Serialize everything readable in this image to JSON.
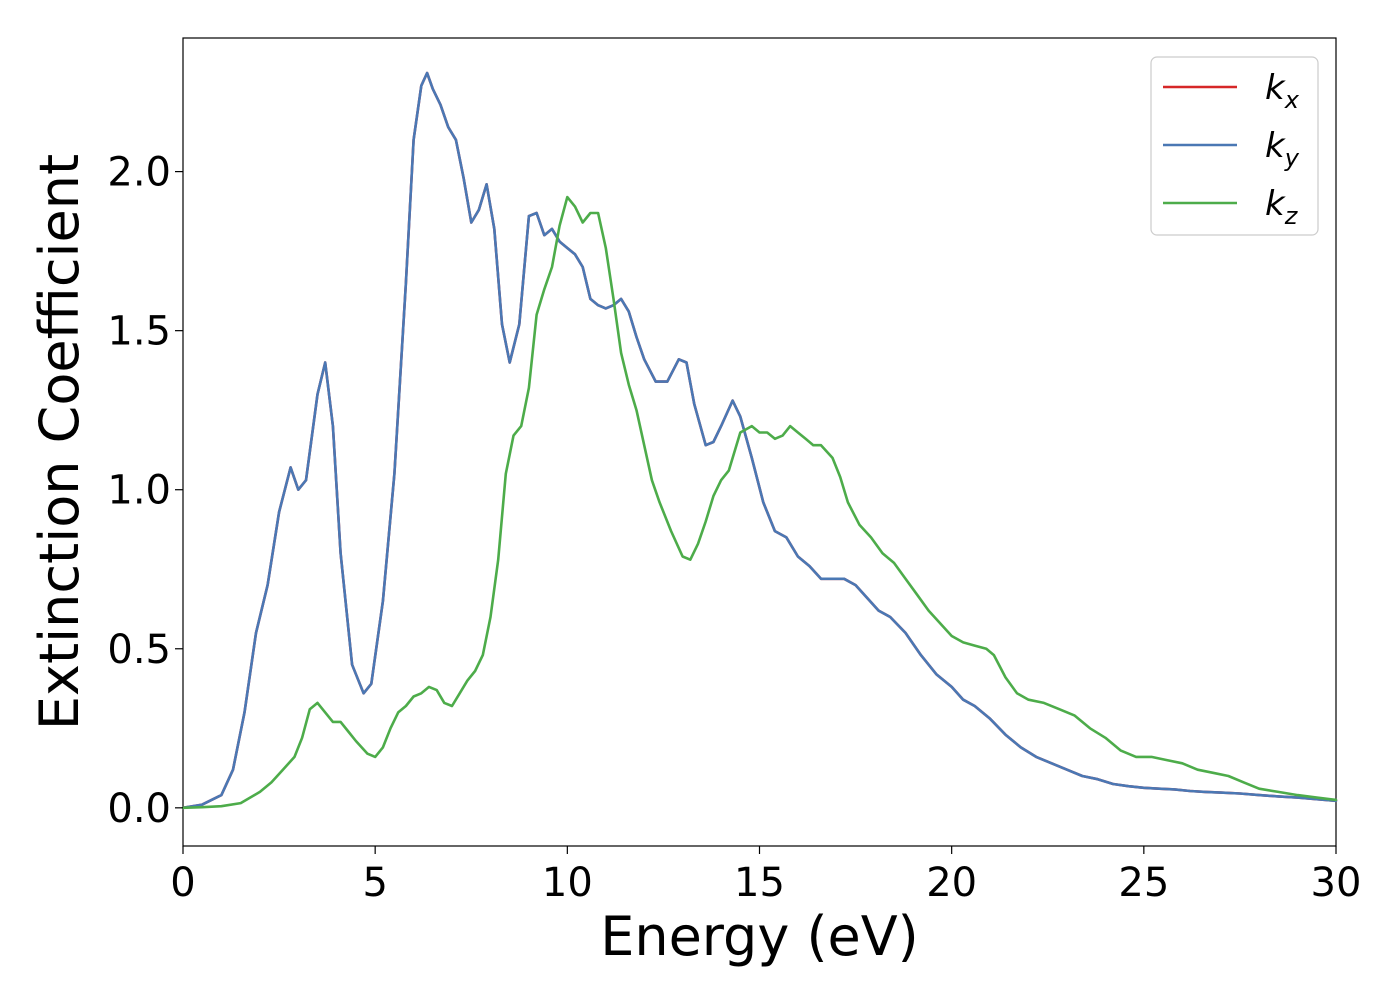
{
  "chart_data": {
    "type": "line",
    "xlabel": "Energy (eV)",
    "ylabel": "Extinction Coefficient",
    "xlim": [
      0,
      30
    ],
    "ylim": [
      -0.12,
      2.42
    ],
    "xticks": [
      0,
      5,
      10,
      15,
      20,
      25,
      30
    ],
    "yticks": [
      0.0,
      0.5,
      1.0,
      1.5,
      2.0
    ],
    "xtick_labels": [
      "0",
      "5",
      "10",
      "15",
      "20",
      "25",
      "30"
    ],
    "ytick_labels": [
      "0.0",
      "0.5",
      "1.0",
      "1.5",
      "2.0"
    ],
    "grid": false,
    "legend_position": "top-right",
    "series": [
      {
        "name": "k",
        "subscript": "x",
        "color": "#d62728",
        "x": [
          0,
          0.5,
          1.0,
          1.3,
          1.6,
          1.9,
          2.2,
          2.5,
          2.8,
          3.0,
          3.2,
          3.5,
          3.7,
          3.9,
          4.1,
          4.4,
          4.7,
          4.9,
          5.2,
          5.5,
          5.8,
          6.0,
          6.2,
          6.35,
          6.5,
          6.7,
          6.9,
          7.1,
          7.3,
          7.5,
          7.7,
          7.9,
          8.1,
          8.3,
          8.5,
          8.75,
          9.0,
          9.2,
          9.4,
          9.6,
          9.8,
          10.0,
          10.2,
          10.4,
          10.6,
          10.8,
          11.0,
          11.2,
          11.4,
          11.6,
          11.8,
          12.0,
          12.3,
          12.6,
          12.9,
          13.1,
          13.3,
          13.6,
          13.8,
          14.0,
          14.3,
          14.5,
          14.8,
          15.1,
          15.4,
          15.7,
          16.0,
          16.3,
          16.6,
          16.9,
          17.2,
          17.5,
          17.8,
          18.1,
          18.4,
          18.8,
          19.2,
          19.6,
          20.0,
          20.3,
          20.6,
          21.0,
          21.4,
          21.8,
          22.2,
          22.6,
          23.0,
          23.4,
          23.8,
          24.2,
          24.6,
          25.0,
          25.4,
          25.8,
          26.2,
          26.6,
          27.0,
          27.5,
          28.0,
          28.5,
          29.0,
          29.5,
          30.0
        ],
        "values": [
          0,
          0.01,
          0.04,
          0.12,
          0.3,
          0.55,
          0.7,
          0.93,
          1.07,
          1.0,
          1.03,
          1.3,
          1.4,
          1.2,
          0.8,
          0.45,
          0.36,
          0.39,
          0.65,
          1.05,
          1.65,
          2.1,
          2.27,
          2.31,
          2.26,
          2.21,
          2.14,
          2.1,
          1.98,
          1.84,
          1.88,
          1.96,
          1.82,
          1.52,
          1.4,
          1.52,
          1.86,
          1.87,
          1.8,
          1.82,
          1.78,
          1.76,
          1.74,
          1.7,
          1.6,
          1.58,
          1.57,
          1.58,
          1.6,
          1.56,
          1.48,
          1.41,
          1.34,
          1.34,
          1.41,
          1.4,
          1.27,
          1.14,
          1.15,
          1.2,
          1.28,
          1.23,
          1.1,
          0.96,
          0.87,
          0.85,
          0.79,
          0.76,
          0.72,
          0.72,
          0.72,
          0.7,
          0.66,
          0.62,
          0.6,
          0.55,
          0.48,
          0.42,
          0.38,
          0.34,
          0.32,
          0.28,
          0.23,
          0.19,
          0.16,
          0.14,
          0.12,
          0.1,
          0.09,
          0.075,
          0.068,
          0.063,
          0.06,
          0.058,
          0.053,
          0.05,
          0.048,
          0.045,
          0.04,
          0.036,
          0.032,
          0.027,
          0.022
        ]
      },
      {
        "name": "k",
        "subscript": "y",
        "color": "#4a78b4",
        "x": [
          0,
          0.5,
          1.0,
          1.3,
          1.6,
          1.9,
          2.2,
          2.5,
          2.8,
          3.0,
          3.2,
          3.5,
          3.7,
          3.9,
          4.1,
          4.4,
          4.7,
          4.9,
          5.2,
          5.5,
          5.8,
          6.0,
          6.2,
          6.35,
          6.5,
          6.7,
          6.9,
          7.1,
          7.3,
          7.5,
          7.7,
          7.9,
          8.1,
          8.3,
          8.5,
          8.75,
          9.0,
          9.2,
          9.4,
          9.6,
          9.8,
          10.0,
          10.2,
          10.4,
          10.6,
          10.8,
          11.0,
          11.2,
          11.4,
          11.6,
          11.8,
          12.0,
          12.3,
          12.6,
          12.9,
          13.1,
          13.3,
          13.6,
          13.8,
          14.0,
          14.3,
          14.5,
          14.8,
          15.1,
          15.4,
          15.7,
          16.0,
          16.3,
          16.6,
          16.9,
          17.2,
          17.5,
          17.8,
          18.1,
          18.4,
          18.8,
          19.2,
          19.6,
          20.0,
          20.3,
          20.6,
          21.0,
          21.4,
          21.8,
          22.2,
          22.6,
          23.0,
          23.4,
          23.8,
          24.2,
          24.6,
          25.0,
          25.4,
          25.8,
          26.2,
          26.6,
          27.0,
          27.5,
          28.0,
          28.5,
          29.0,
          29.5,
          30.0
        ],
        "values": [
          0,
          0.01,
          0.04,
          0.12,
          0.3,
          0.55,
          0.7,
          0.93,
          1.07,
          1.0,
          1.03,
          1.3,
          1.4,
          1.2,
          0.8,
          0.45,
          0.36,
          0.39,
          0.65,
          1.05,
          1.65,
          2.1,
          2.27,
          2.31,
          2.26,
          2.21,
          2.14,
          2.1,
          1.98,
          1.84,
          1.88,
          1.96,
          1.82,
          1.52,
          1.4,
          1.52,
          1.86,
          1.87,
          1.8,
          1.82,
          1.78,
          1.76,
          1.74,
          1.7,
          1.6,
          1.58,
          1.57,
          1.58,
          1.6,
          1.56,
          1.48,
          1.41,
          1.34,
          1.34,
          1.41,
          1.4,
          1.27,
          1.14,
          1.15,
          1.2,
          1.28,
          1.23,
          1.1,
          0.96,
          0.87,
          0.85,
          0.79,
          0.76,
          0.72,
          0.72,
          0.72,
          0.7,
          0.66,
          0.62,
          0.6,
          0.55,
          0.48,
          0.42,
          0.38,
          0.34,
          0.32,
          0.28,
          0.23,
          0.19,
          0.16,
          0.14,
          0.12,
          0.1,
          0.09,
          0.075,
          0.068,
          0.063,
          0.06,
          0.058,
          0.053,
          0.05,
          0.048,
          0.045,
          0.04,
          0.036,
          0.032,
          0.027,
          0.022
        ]
      },
      {
        "name": "k",
        "subscript": "z",
        "color": "#4dac4a",
        "x": [
          0,
          0.5,
          1.0,
          1.5,
          2.0,
          2.3,
          2.6,
          2.9,
          3.1,
          3.3,
          3.5,
          3.7,
          3.9,
          4.1,
          4.3,
          4.5,
          4.8,
          5.0,
          5.2,
          5.4,
          5.6,
          5.8,
          6.0,
          6.2,
          6.4,
          6.6,
          6.8,
          7.0,
          7.2,
          7.4,
          7.6,
          7.8,
          8.0,
          8.2,
          8.4,
          8.6,
          8.8,
          9.0,
          9.2,
          9.4,
          9.6,
          9.8,
          10.0,
          10.2,
          10.4,
          10.6,
          10.8,
          11.0,
          11.2,
          11.4,
          11.6,
          11.8,
          12.0,
          12.2,
          12.4,
          12.7,
          13.0,
          13.2,
          13.4,
          13.6,
          13.8,
          14.0,
          14.2,
          14.5,
          14.8,
          15.0,
          15.2,
          15.4,
          15.6,
          15.8,
          16.0,
          16.2,
          16.4,
          16.6,
          16.9,
          17.1,
          17.3,
          17.6,
          17.9,
          18.2,
          18.5,
          18.8,
          19.1,
          19.4,
          19.7,
          20.0,
          20.3,
          20.6,
          20.9,
          21.1,
          21.4,
          21.7,
          22.0,
          22.4,
          22.8,
          23.2,
          23.6,
          24.0,
          24.4,
          24.8,
          25.2,
          25.6,
          26.0,
          26.4,
          26.8,
          27.2,
          27.6,
          28.0,
          28.5,
          29.0,
          29.5,
          30.0
        ],
        "values": [
          0,
          0.002,
          0.005,
          0.015,
          0.05,
          0.08,
          0.12,
          0.16,
          0.22,
          0.31,
          0.33,
          0.3,
          0.27,
          0.27,
          0.24,
          0.21,
          0.17,
          0.16,
          0.19,
          0.25,
          0.3,
          0.32,
          0.35,
          0.36,
          0.38,
          0.37,
          0.33,
          0.32,
          0.36,
          0.4,
          0.43,
          0.48,
          0.6,
          0.78,
          1.05,
          1.17,
          1.2,
          1.32,
          1.55,
          1.63,
          1.7,
          1.83,
          1.92,
          1.89,
          1.84,
          1.87,
          1.87,
          1.76,
          1.6,
          1.43,
          1.33,
          1.25,
          1.14,
          1.03,
          0.96,
          0.87,
          0.79,
          0.78,
          0.83,
          0.9,
          0.98,
          1.03,
          1.06,
          1.18,
          1.2,
          1.18,
          1.18,
          1.16,
          1.17,
          1.2,
          1.18,
          1.16,
          1.14,
          1.14,
          1.1,
          1.04,
          0.96,
          0.89,
          0.85,
          0.8,
          0.77,
          0.72,
          0.67,
          0.62,
          0.58,
          0.54,
          0.52,
          0.51,
          0.5,
          0.48,
          0.41,
          0.36,
          0.34,
          0.33,
          0.31,
          0.29,
          0.25,
          0.22,
          0.18,
          0.16,
          0.16,
          0.15,
          0.14,
          0.12,
          0.11,
          0.1,
          0.08,
          0.06,
          0.05,
          0.04,
          0.032,
          0.025
        ]
      }
    ]
  }
}
